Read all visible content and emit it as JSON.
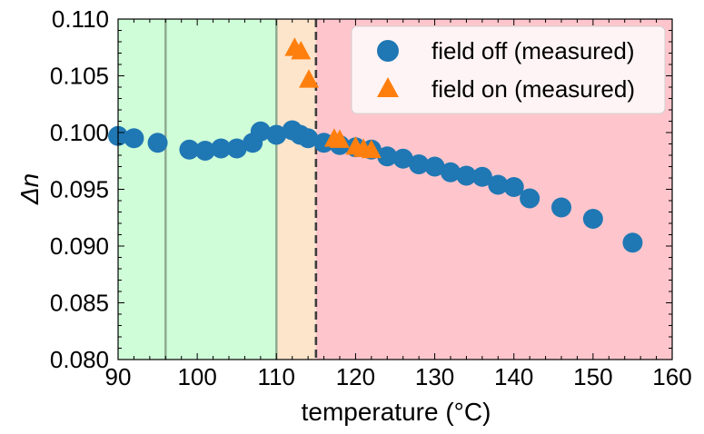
{
  "chart_data": {
    "type": "scatter",
    "xlabel": "temperature (°C)",
    "ylabel": "Δn",
    "xlim": [
      90,
      160
    ],
    "ylim": [
      0.08,
      0.11
    ],
    "xticks": [
      "90",
      "100",
      "110",
      "120",
      "130",
      "140",
      "150",
      "160"
    ],
    "yticks": [
      "0.080",
      "0.085",
      "0.090",
      "0.095",
      "0.100",
      "0.105",
      "0.110"
    ],
    "legend_position": "top-right",
    "shaded_regions": [
      {
        "from": 90,
        "to": 110,
        "color": "#cffdd8"
      },
      {
        "from": 110,
        "to": 115,
        "color": "#fde5cc"
      },
      {
        "from": 115,
        "to": 160,
        "color": "#fec6cc"
      }
    ],
    "vertical_lines": [
      {
        "x": 96,
        "style": "solid",
        "color": "#8aaa8e"
      },
      {
        "x": 110,
        "style": "solid",
        "color": "#8aaa8e"
      },
      {
        "x": 115,
        "style": "dashed",
        "color": "#3d3d3d"
      }
    ],
    "series": [
      {
        "name": "field off (measured)",
        "marker": "circle",
        "color": "#1f77b4",
        "points": [
          [
            90,
            0.0997
          ],
          [
            92,
            0.0995
          ],
          [
            95,
            0.0991
          ],
          [
            99,
            0.0985
          ],
          [
            101,
            0.0984
          ],
          [
            103,
            0.0986
          ],
          [
            105,
            0.0986
          ],
          [
            107,
            0.0991
          ],
          [
            108,
            0.1001
          ],
          [
            110,
            0.0998
          ],
          [
            112,
            0.1002
          ],
          [
            113,
            0.0998
          ],
          [
            114,
            0.0995
          ],
          [
            116,
            0.0991
          ],
          [
            118,
            0.0989
          ],
          [
            120,
            0.0987
          ],
          [
            122,
            0.0985
          ],
          [
            124,
            0.0979
          ],
          [
            126,
            0.0977
          ],
          [
            128,
            0.0972
          ],
          [
            130,
            0.097
          ],
          [
            132,
            0.0965
          ],
          [
            134,
            0.0962
          ],
          [
            136,
            0.0961
          ],
          [
            138,
            0.0954
          ],
          [
            140,
            0.0952
          ],
          [
            142,
            0.0942
          ],
          [
            146,
            0.0934
          ],
          [
            150,
            0.0924
          ],
          [
            155,
            0.0903
          ]
        ]
      },
      {
        "name": "field on (measured)",
        "marker": "triangle",
        "color": "#ff7f0e",
        "points": [
          [
            112.3,
            0.1075
          ],
          [
            113.1,
            0.1072
          ],
          [
            114.1,
            0.1047
          ],
          [
            117.3,
            0.0995
          ],
          [
            118.0,
            0.0994
          ],
          [
            120.0,
            0.0988
          ],
          [
            121.0,
            0.0986
          ],
          [
            122.0,
            0.0985
          ]
        ]
      }
    ]
  }
}
